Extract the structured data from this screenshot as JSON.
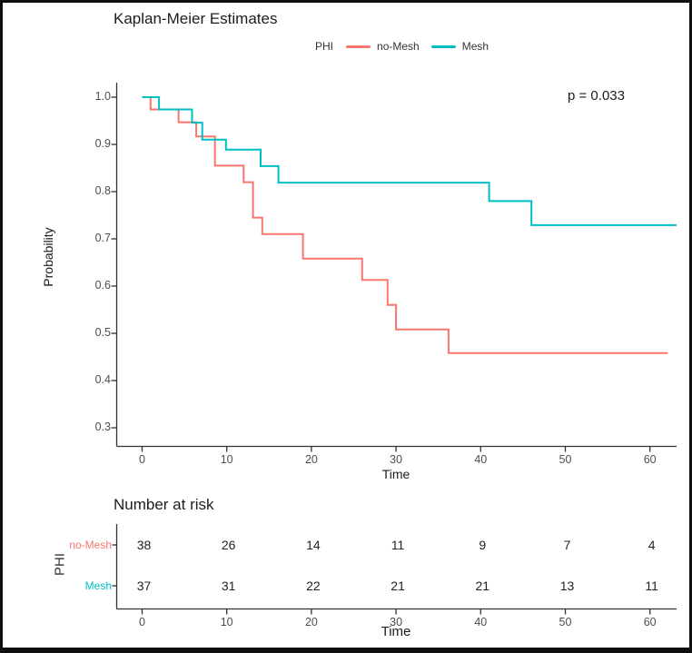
{
  "title": "Kaplan-Meier Estimates",
  "annotation": {
    "p_value": "p = 0.033"
  },
  "legend": {
    "group_label": "PHI",
    "items": [
      {
        "label": "no-Mesh",
        "color": "#f8766d"
      },
      {
        "label": "Mesh",
        "color": "#00bfc4"
      }
    ]
  },
  "chart_data": {
    "type": "line",
    "subtype": "kaplan-meier-step",
    "title": "Kaplan-Meier Estimates",
    "xlabel": "Time",
    "ylabel": "Probability",
    "xlim": [
      -3,
      63.5
    ],
    "ylim": [
      0.26,
      1.03
    ],
    "x_ticks": [
      0,
      10,
      20,
      30,
      40,
      50,
      60
    ],
    "x_tick_labels": [
      "0",
      "10",
      "20",
      "30",
      "40",
      "50",
      "60"
    ],
    "y_ticks": [
      1.0,
      0.9,
      0.8,
      0.7,
      0.6,
      0.5,
      0.4,
      0.3
    ],
    "y_tick_labels": [
      "1.0",
      "0.9",
      "0.8",
      "0.7",
      "0.6",
      "0.5",
      "0.4",
      "0.3"
    ],
    "grid": false,
    "legend_position": "top",
    "annotation": "p = 0.033",
    "series": [
      {
        "name": "no-Mesh",
        "color": "#f8766d",
        "points": [
          [
            0,
            1.0
          ],
          [
            1,
            0.974
          ],
          [
            4.3,
            0.947
          ],
          [
            6.4,
            0.917
          ],
          [
            8.6,
            0.855
          ],
          [
            12,
            0.82
          ],
          [
            13.1,
            0.745
          ],
          [
            14.2,
            0.71
          ],
          [
            19,
            0.658
          ],
          [
            26,
            0.613
          ],
          [
            29,
            0.56
          ],
          [
            30,
            0.508
          ],
          [
            36.2,
            0.458
          ],
          [
            62.1,
            0.458
          ]
        ]
      },
      {
        "name": "Mesh",
        "color": "#00bfc4",
        "points": [
          [
            0,
            1.0
          ],
          [
            2,
            0.974
          ],
          [
            5.9,
            0.946
          ],
          [
            7.1,
            0.91
          ],
          [
            9.9,
            0.889
          ],
          [
            14,
            0.854
          ],
          [
            16.1,
            0.819
          ],
          [
            41,
            0.78
          ],
          [
            46,
            0.729
          ],
          [
            63.2,
            0.729
          ]
        ]
      }
    ]
  },
  "risk_table": {
    "title": "Number at risk",
    "axis_label": "PHI",
    "xlabel": "Time",
    "x_ticks": [
      0,
      10,
      20,
      30,
      40,
      50,
      60
    ],
    "x_tick_labels": [
      "0",
      "10",
      "20",
      "30",
      "40",
      "50",
      "60"
    ],
    "rows": [
      {
        "label": "no-Mesh",
        "color": "#f8766d",
        "values": [
          "38",
          "26",
          "14",
          "11",
          "9",
          "7",
          "4"
        ]
      },
      {
        "label": "Mesh",
        "color": "#00bfc4",
        "values": [
          "37",
          "31",
          "22",
          "21",
          "21",
          "13",
          "11"
        ]
      }
    ]
  }
}
